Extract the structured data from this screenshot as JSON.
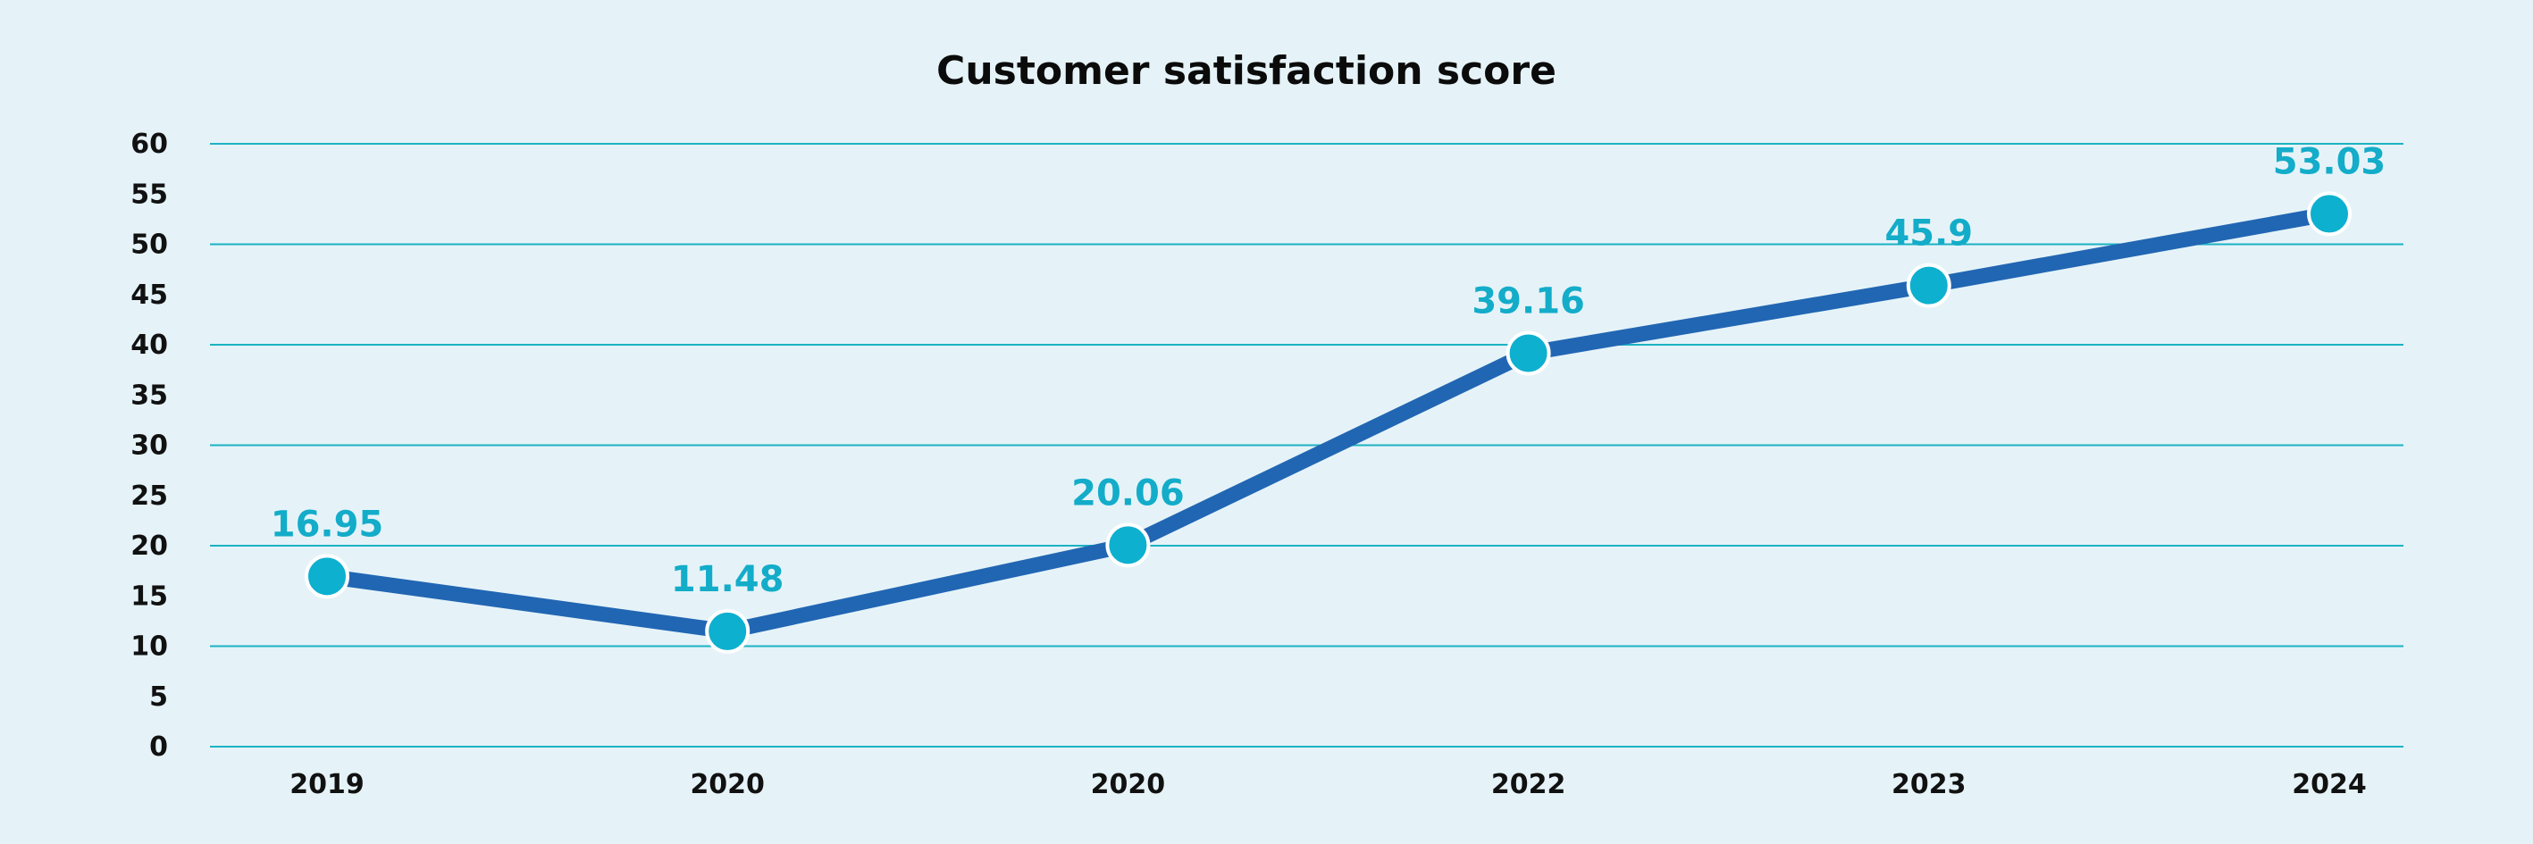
{
  "chart_data": {
    "type": "line",
    "title": "Customer satisfaction score",
    "xlabel": "",
    "ylabel": "",
    "categories": [
      "2019",
      "2020",
      "2020",
      "2022",
      "2023",
      "2024"
    ],
    "series": [
      {
        "values": [
          16.95,
          11.48,
          20.06,
          39.16,
          45.9,
          53.03
        ],
        "data_labels": [
          "16.95",
          "11.48",
          "20.06",
          "39.16",
          "45.9",
          "53.03"
        ]
      }
    ],
    "ylim": [
      0,
      60
    ],
    "y_ticks": [
      "0",
      "5",
      "10",
      "15",
      "20",
      "25",
      "30",
      "35",
      "40",
      "45",
      "50",
      "55",
      "60"
    ],
    "grid": true,
    "gridline_values": [
      0,
      10,
      20,
      30,
      40,
      50,
      60
    ],
    "legend": "none",
    "colors": {
      "background": "#e5f3f8",
      "line": "#2166b3",
      "marker": "#0db0cf",
      "marker_stroke": "#ffffff",
      "label": "#13acc9",
      "grid": "#1bb2c3"
    }
  }
}
